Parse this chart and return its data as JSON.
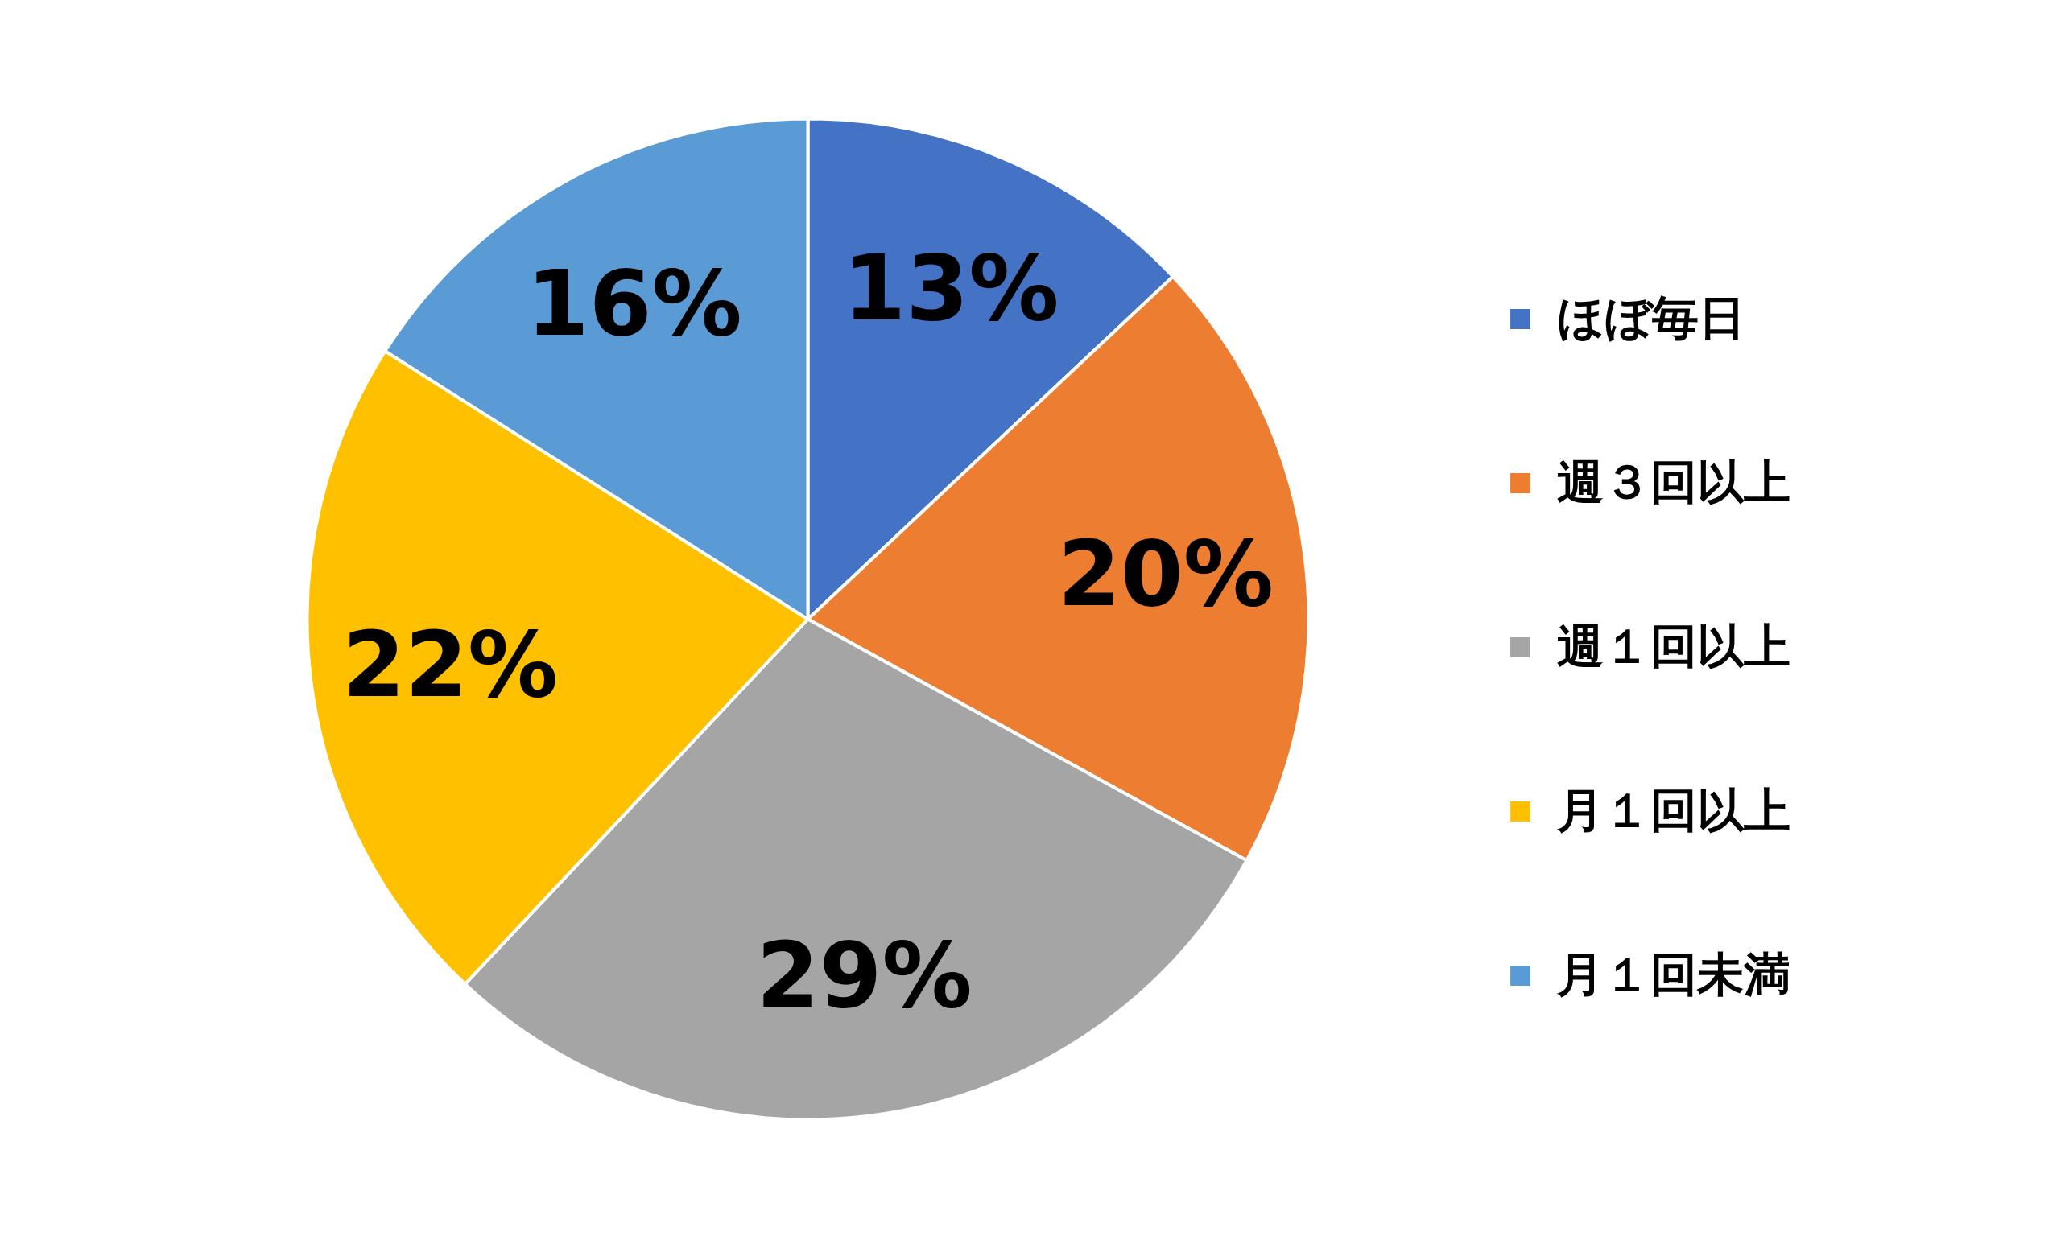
{
  "chart_data": {
    "type": "pie",
    "categories": [
      "ほぼ毎日",
      "週３回以上",
      "週１回以上",
      "月１回以上",
      "月１回未満"
    ],
    "values": [
      13,
      20,
      29,
      22,
      16
    ],
    "colors": [
      "#4472c4",
      "#ed7d31",
      "#a5a5a5",
      "#ffc000",
      "#5b9bd5"
    ],
    "value_labels": [
      "13%",
      "20%",
      "29%",
      "22%",
      "16%"
    ],
    "legend": "right"
  }
}
